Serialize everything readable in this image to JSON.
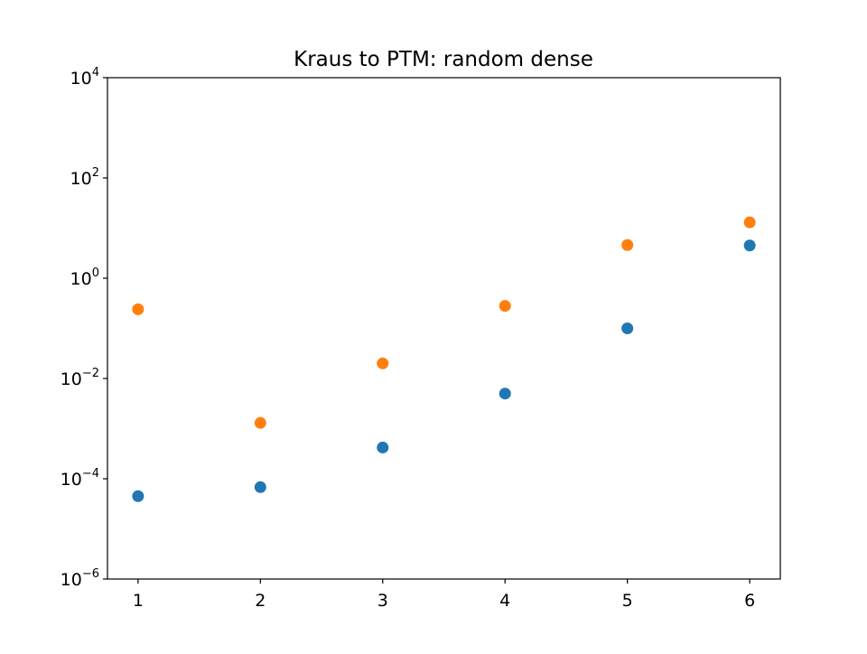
{
  "chart_data": {
    "type": "scatter",
    "title": "Kraus to PTM: random dense",
    "xlabel": "",
    "ylabel": "",
    "x_scale": "linear",
    "y_scale": "log",
    "xlim": [
      0.75,
      6.25
    ],
    "ylim": [
      1e-06,
      10000.0
    ],
    "x_ticks": [
      1,
      2,
      3,
      4,
      5,
      6
    ],
    "y_ticks": [
      {
        "value": 1e-06,
        "base": "10",
        "exponent": "−6"
      },
      {
        "value": 0.0001,
        "base": "10",
        "exponent": "−4"
      },
      {
        "value": 0.01,
        "base": "10",
        "exponent": "−2"
      },
      {
        "value": 1,
        "base": "10",
        "exponent": "0"
      },
      {
        "value": 100,
        "base": "10",
        "exponent": "2"
      },
      {
        "value": 10000,
        "base": "10",
        "exponent": "4"
      }
    ],
    "grid": false,
    "legend": false,
    "series": [
      {
        "color": "#1f77b4",
        "x": [
          1,
          2,
          3,
          4,
          5,
          6
        ],
        "y": [
          4.5e-05,
          6.8e-05,
          0.00042,
          0.005,
          0.1,
          4.5
        ]
      },
      {
        "color": "#ff7f0e",
        "x": [
          1,
          2,
          3,
          4,
          5,
          6
        ],
        "y": [
          0.24,
          0.0013,
          0.02,
          0.28,
          4.6,
          13
        ]
      }
    ]
  }
}
